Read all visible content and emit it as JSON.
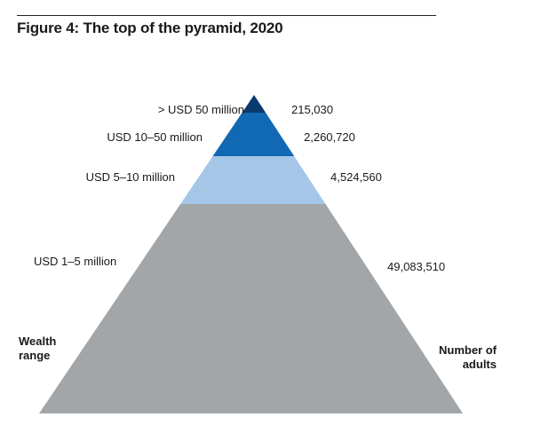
{
  "title": "Figure 4: The top of the pyramid, 2020",
  "chart_data": {
    "type": "pyramid",
    "title": "Figure 4: The top of the pyramid, 2020",
    "left_axis_label": "Wealth range",
    "right_axis_label": "Number of adults",
    "tiers": [
      {
        "range": "> USD 50 million",
        "adults": "215,030",
        "value": 215030,
        "color": "#0b3a6e"
      },
      {
        "range": "USD 10–50 million",
        "adults": "2,260,720",
        "value": 2260720,
        "color": "#1169b3"
      },
      {
        "range": "USD 5–10 million",
        "adults": "4,524,560",
        "value": 4524560,
        "color": "#a6c6e8"
      },
      {
        "range": "USD 1–5 million",
        "adults": "49,083,510",
        "value": 49083510,
        "color": "#a3a6a9"
      }
    ]
  },
  "axis": {
    "left_line1": "Wealth",
    "left_line2": "range",
    "right_line1": "Number of",
    "right_line2": "adults"
  }
}
